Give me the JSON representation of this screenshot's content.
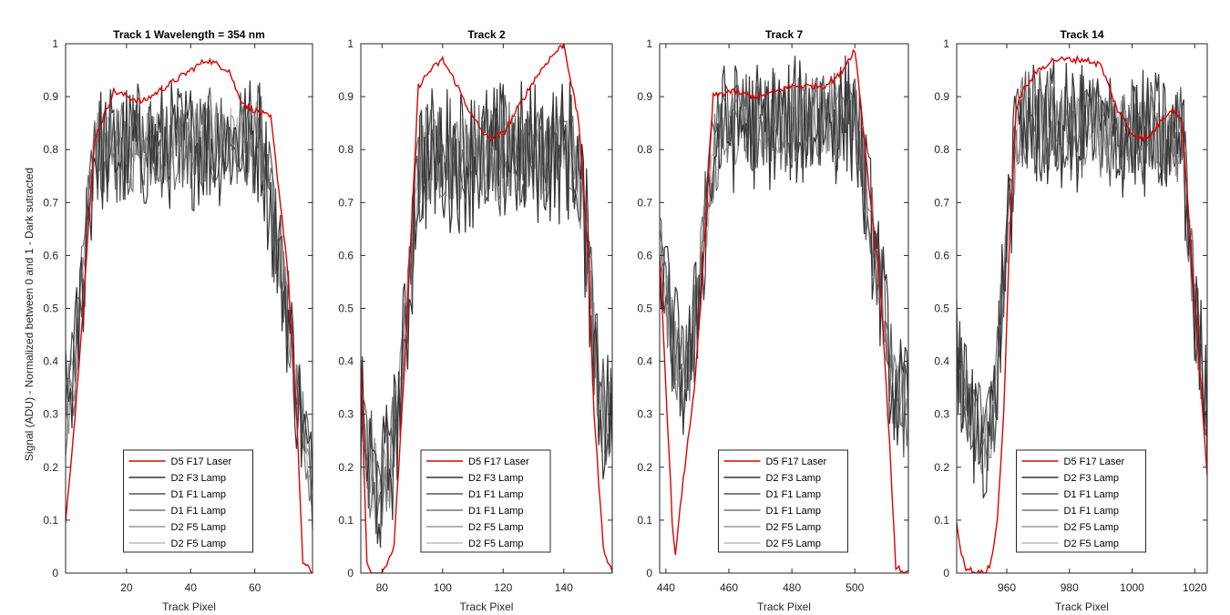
{
  "figure": {
    "ylabel": "Signal (ADU) - Normalized between 0 and 1 - Dark sutracted",
    "xlabel": "Track Pixel",
    "legend_position": "bottom-center",
    "grid": false,
    "y_ticks": [
      "0",
      "0.1",
      "0.2",
      "0.3",
      "0.4",
      "0.5",
      "0.6",
      "0.7",
      "0.8",
      "0.9",
      "1"
    ],
    "colors": {
      "D5 F17 Laser": "#e00000",
      "D2 F3 Lamp": "#333333",
      "D1 F1 Lamp a": "#555555",
      "D1 F1 Lamp b": "#777777",
      "D2 F5 Lamp a": "#999999",
      "D2 F5 Lamp b": "#bbbbbb"
    }
  },
  "chart_data": [
    {
      "type": "line",
      "title": "Track 1 Wavelength = 354 nm",
      "xlabel": "Track Pixel",
      "xlim": [
        1,
        78
      ],
      "ylim": [
        0,
        1
      ],
      "x_ticks": [
        "20",
        "40",
        "60"
      ],
      "x_tick_values": [
        20,
        40,
        60
      ],
      "legend": [
        "D5 F17 Laser",
        "D2 F3 Lamp",
        "D1 F1 Lamp",
        "D1 F1 Lamp",
        "D2 F5 Lamp",
        "D2 F5 Lamp"
      ],
      "laser_shape": {
        "x": [
          1,
          4,
          7,
          10,
          16,
          25,
          35,
          45,
          52,
          55,
          58,
          65,
          70,
          73,
          75,
          78
        ],
        "y": [
          0.1,
          0.3,
          0.55,
          0.82,
          0.91,
          0.89,
          0.93,
          0.97,
          0.95,
          0.9,
          0.88,
          0.86,
          0.59,
          0.3,
          0.02,
          0
        ]
      },
      "lamp_shape": {
        "x": [
          1,
          4,
          7,
          10,
          62,
          66,
          70,
          74,
          78
        ],
        "y": [
          0.3,
          0.4,
          0.6,
          0.8,
          0.82,
          0.65,
          0.5,
          0.3,
          0.15
        ]
      },
      "lamp_noise": 0.08
    },
    {
      "type": "line",
      "title": "Track 2",
      "xlabel": "Track Pixel",
      "xlim": [
        73,
        156
      ],
      "ylim": [
        0,
        1
      ],
      "x_ticks": [
        "80",
        "100",
        "120",
        "140"
      ],
      "x_tick_values": [
        80,
        100,
        120,
        140
      ],
      "legend": [
        "D5 F17 Laser",
        "D2 F3 Lamp",
        "D1 F1 Lamp",
        "D1 F1 Lamp",
        "D2 F5 Lamp",
        "D2 F5 Lamp"
      ],
      "laser_shape": {
        "x": [
          73,
          75,
          77,
          80,
          84,
          88,
          92,
          96,
          100,
          104,
          110,
          115,
          120,
          125,
          130,
          135,
          140,
          145,
          148,
          150,
          153,
          156
        ],
        "y": [
          0.4,
          0.02,
          0,
          0,
          0.05,
          0.45,
          0.92,
          0.95,
          0.97,
          0.93,
          0.86,
          0.82,
          0.83,
          0.88,
          0.93,
          0.97,
          1.0,
          0.85,
          0.6,
          0.3,
          0.05,
          0
        ]
      },
      "lamp_shape": {
        "x": [
          73,
          76,
          80,
          84,
          88,
          92,
          144,
          148,
          152,
          156
        ],
        "y": [
          0.28,
          0.2,
          0.15,
          0.25,
          0.45,
          0.78,
          0.8,
          0.6,
          0.3,
          0.3
        ]
      },
      "lamp_noise": 0.09
    },
    {
      "type": "line",
      "title": "Track 7",
      "xlabel": "Track Pixel",
      "xlim": [
        438,
        517
      ],
      "ylim": [
        0,
        1
      ],
      "x_ticks": [
        "440",
        "460",
        "480",
        "500"
      ],
      "x_tick_values": [
        440,
        460,
        480,
        500
      ],
      "legend": [
        "D5 F17 Laser",
        "D2 F3 Lamp",
        "D1 F1 Lamp",
        "D1 F1 Lamp",
        "D2 F5 Lamp",
        "D2 F5 Lamp"
      ],
      "laser_shape": {
        "x": [
          438,
          440,
          442,
          443,
          445,
          447,
          449,
          451,
          453,
          455,
          460,
          470,
          480,
          490,
          495,
          500,
          502,
          505,
          508,
          511,
          513,
          517
        ],
        "y": [
          0.6,
          0.35,
          0.1,
          0.03,
          0.15,
          0.25,
          0.35,
          0.5,
          0.7,
          0.9,
          0.91,
          0.9,
          0.92,
          0.92,
          0.94,
          0.99,
          0.88,
          0.7,
          0.55,
          0.25,
          0.01,
          0
        ]
      },
      "lamp_shape": {
        "x": [
          438,
          442,
          446,
          450,
          454,
          458,
          500,
          504,
          508,
          512,
          517
        ],
        "y": [
          0.6,
          0.45,
          0.35,
          0.5,
          0.75,
          0.84,
          0.86,
          0.7,
          0.55,
          0.35,
          0.3
        ]
      },
      "lamp_noise": 0.08
    },
    {
      "type": "line",
      "title": "Track 14",
      "xlabel": "Track Pixel",
      "xlim": [
        944,
        1024
      ],
      "ylim": [
        0,
        1
      ],
      "x_ticks": [
        "960",
        "980",
        "1000",
        "1020"
      ],
      "x_tick_values": [
        960,
        980,
        1000,
        1020
      ],
      "legend": [
        "D5 F17 Laser",
        "D2 F3 Lamp",
        "D1 F1 Lamp",
        "D1 F1 Lamp",
        "D2 F5 Lamp",
        "D2 F5 Lamp"
      ],
      "laser_shape": {
        "x": [
          944,
          945,
          947,
          950,
          953,
          955,
          957,
          959,
          961,
          963,
          965,
          970,
          975,
          980,
          985,
          990,
          995,
          1000,
          1005,
          1010,
          1013,
          1016,
          1019,
          1022,
          1024
        ],
        "y": [
          0.1,
          0.05,
          0.01,
          0,
          0,
          0.02,
          0.1,
          0.3,
          0.65,
          0.88,
          0.91,
          0.95,
          0.97,
          0.97,
          0.97,
          0.96,
          0.88,
          0.83,
          0.82,
          0.86,
          0.88,
          0.85,
          0.6,
          0.35,
          0.18
        ]
      },
      "lamp_shape": {
        "x": [
          944,
          948,
          952,
          956,
          960,
          964,
          1016,
          1020,
          1024
        ],
        "y": [
          0.4,
          0.3,
          0.25,
          0.3,
          0.65,
          0.85,
          0.82,
          0.5,
          0.3
        ]
      },
      "lamp_noise": 0.08
    }
  ]
}
